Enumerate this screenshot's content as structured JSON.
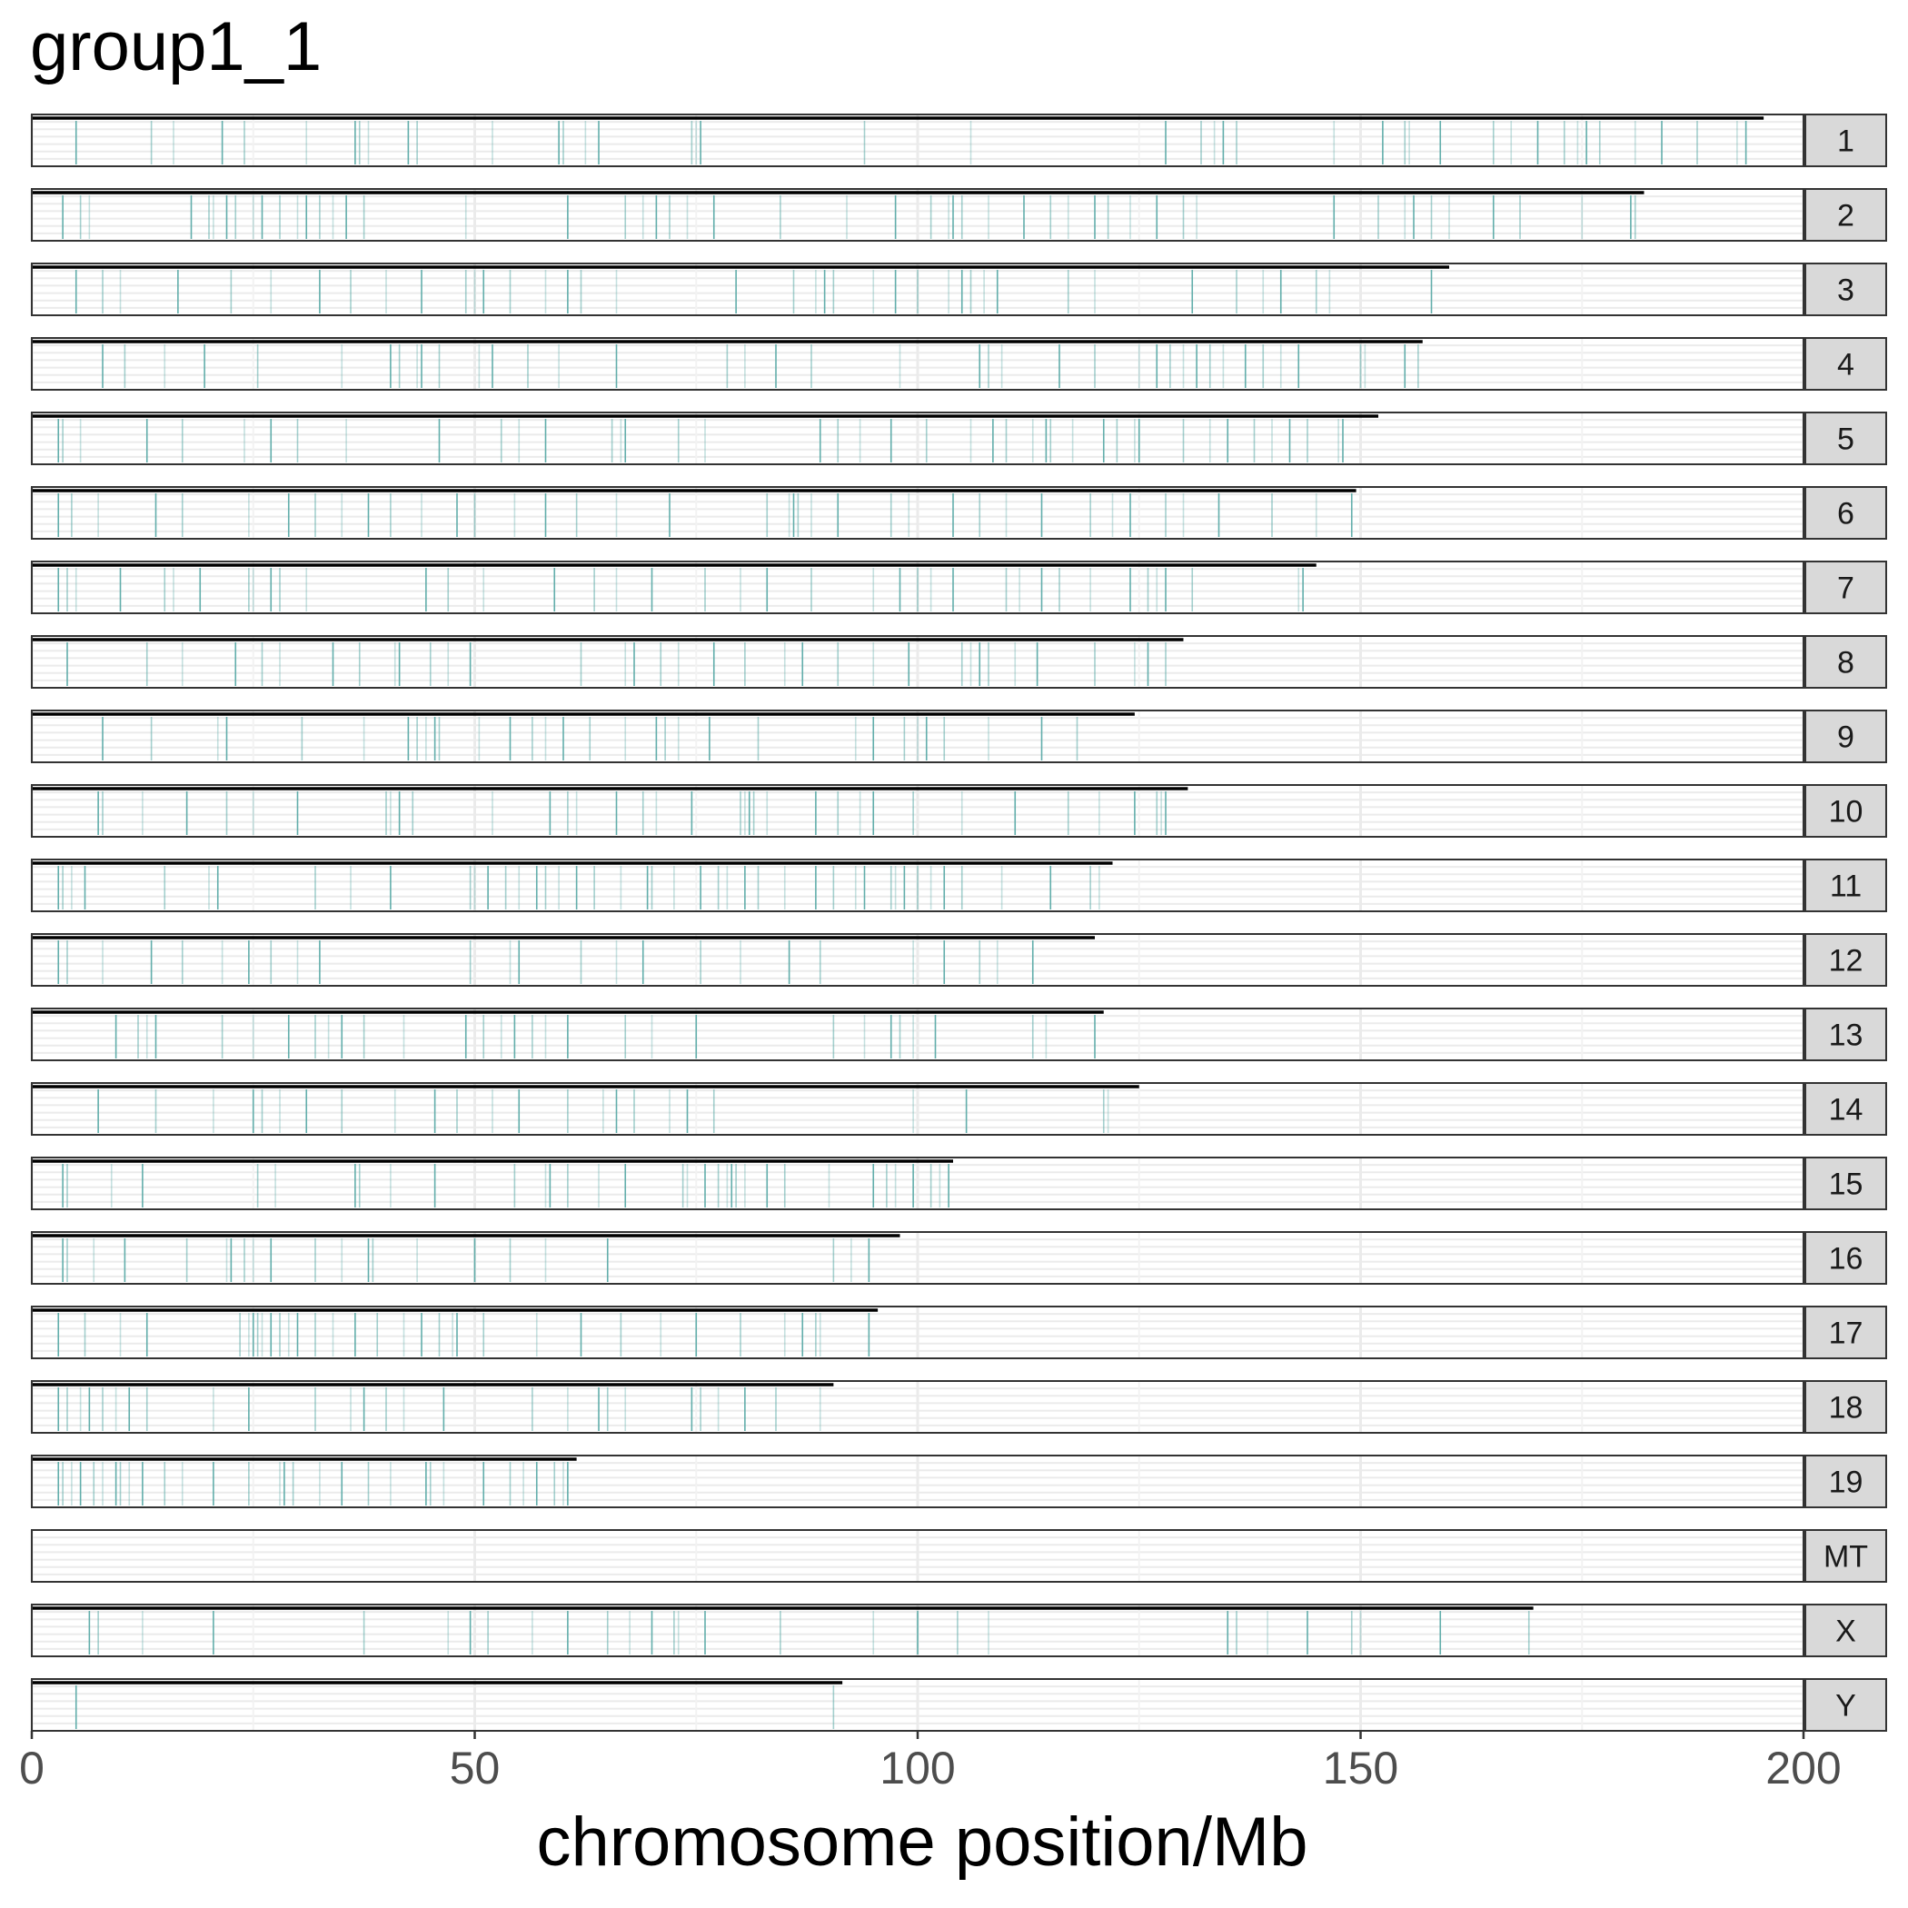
{
  "title": "group1_1",
  "chart_data": {
    "type": "scatter",
    "title": "group1_1",
    "xlabel": "chromosome position/Mb",
    "ylabel": "",
    "xlim": [
      0,
      200
    ],
    "xticks": [
      0,
      50,
      100,
      150,
      200
    ],
    "grid": true,
    "legend": "none",
    "colors": {
      "marker": "#5aaaa6",
      "chromosome_line": "#000000",
      "panel_bg": "#ffffff",
      "strip_bg": "#d9d9d9",
      "gridline": "#ebebeb"
    },
    "panels": [
      {
        "name": "1",
        "length": 195.5,
        "positions": [
          5,
          13.5,
          16,
          21.5,
          24,
          31,
          36.5,
          37,
          38,
          42.5,
          43.5,
          52,
          59.5,
          60,
          62.5,
          64,
          74.5,
          75,
          75.5,
          94,
          106,
          128,
          132,
          133.5,
          134.5,
          136,
          147,
          152.5,
          155,
          155.5,
          159,
          165,
          167,
          170,
          173,
          174.5,
          175.5,
          177,
          181,
          184,
          188,
          192.5,
          193.5
        ]
      },
      {
        "name": "2",
        "length": 182,
        "positions": [
          3.5,
          5.5,
          6.5,
          18,
          20,
          20.5,
          22,
          23,
          25,
          26,
          28,
          30,
          31,
          32.5,
          34,
          35.5,
          37.5,
          49,
          60.5,
          67,
          69,
          70.5,
          72,
          74,
          77,
          84.5,
          92,
          97.5,
          101.5,
          103.5,
          104,
          105,
          108,
          112,
          115,
          117,
          120,
          121.5,
          124,
          127,
          130,
          131.5,
          147,
          152,
          155,
          156,
          158,
          160,
          165,
          168,
          175,
          180.5,
          181
        ]
      },
      {
        "name": "3",
        "length": 160,
        "positions": [
          5,
          8,
          10,
          16.5,
          22.5,
          27,
          32.5,
          36,
          40,
          44,
          49,
          50,
          51,
          54,
          58,
          60.5,
          62,
          66,
          79.5,
          86,
          88.5,
          89.5,
          90.5,
          95,
          97.5,
          100,
          103.5,
          105,
          106,
          107.5,
          109,
          117,
          120,
          131,
          136,
          139,
          141,
          145,
          146.5,
          158
        ]
      },
      {
        "name": "4",
        "length": 157,
        "positions": [
          8,
          10.5,
          15,
          19.5,
          25.5,
          35,
          40.5,
          41.5,
          43.5,
          44,
          46,
          50.5,
          52,
          56,
          59.5,
          66,
          78.5,
          80.5,
          84,
          88,
          98,
          107,
          108,
          109.5,
          116,
          120,
          125,
          127,
          128.5,
          130,
          131.5,
          133,
          134.5,
          137,
          139,
          141,
          143,
          150,
          150.5,
          155,
          156.5
        ]
      },
      {
        "name": "5",
        "length": 152,
        "positions": [
          3,
          3.5,
          5.5,
          13,
          17,
          24,
          27,
          30,
          35.5,
          46,
          53,
          55,
          58,
          65.5,
          66.5,
          67,
          73,
          76,
          89,
          91,
          93.5,
          97,
          101,
          106,
          108.5,
          110,
          113,
          114.5,
          115,
          117.5,
          121,
          122.5,
          124.5,
          125,
          130,
          133,
          135,
          138,
          140,
          142,
          144,
          147.5,
          148
        ]
      },
      {
        "name": "6",
        "length": 149.5,
        "positions": [
          3,
          4.5,
          7.5,
          14,
          17,
          24.5,
          29,
          32,
          35,
          38,
          40.5,
          44,
          48,
          50,
          54.5,
          58,
          61.5,
          66,
          72,
          83,
          85.5,
          86,
          86.5,
          88,
          91,
          97,
          99,
          104,
          107,
          110,
          114,
          119.5,
          122,
          124,
          128,
          130,
          134,
          140,
          145,
          149
        ]
      },
      {
        "name": "7",
        "length": 145,
        "positions": [
          3,
          4,
          5,
          10,
          15,
          16,
          19,
          24.5,
          25,
          27,
          28,
          31,
          44.5,
          47,
          51,
          59,
          63.5,
          66,
          70,
          76,
          80,
          83,
          88,
          95,
          98,
          100,
          101.5,
          104,
          110,
          111.5,
          114,
          116,
          119.5,
          124,
          126,
          127,
          128,
          131,
          143,
          143.5
        ]
      },
      {
        "name": "8",
        "length": 130,
        "positions": [
          4,
          13,
          17,
          23,
          26,
          28,
          34,
          37,
          41,
          41.5,
          45,
          47,
          49.5,
          62,
          67,
          68,
          71,
          73,
          77,
          80.5,
          85,
          87,
          91,
          95,
          99,
          105,
          106,
          107,
          108,
          111,
          113.5,
          120,
          124.5,
          126,
          128
        ]
      },
      {
        "name": "9",
        "length": 124.5,
        "positions": [
          8,
          13.5,
          21,
          22,
          30.5,
          37.5,
          42.5,
          43.5,
          44.5,
          45.5,
          46,
          50.5,
          54,
          56.5,
          58,
          60,
          63,
          67,
          70.5,
          71.5,
          73,
          76.5,
          82,
          93,
          95,
          98.5,
          100,
          101,
          103,
          108,
          114,
          118
        ]
      },
      {
        "name": "10",
        "length": 130.5,
        "positions": [
          7.5,
          8,
          12.5,
          17.5,
          22,
          25,
          30,
          40,
          40.5,
          41.5,
          43,
          52,
          58.5,
          60.5,
          61.5,
          66,
          69,
          70.5,
          74.5,
          80,
          80.5,
          81,
          81.5,
          83,
          88.5,
          91,
          93.5,
          95,
          99.5,
          105,
          111,
          117,
          120.5,
          124.5,
          127,
          127.5,
          128
        ]
      },
      {
        "name": "11",
        "length": 122,
        "positions": [
          3,
          3.5,
          4.5,
          6,
          15,
          20,
          21,
          32,
          36,
          40.5,
          49.5,
          50,
          51.5,
          53.5,
          55,
          57,
          58,
          59.5,
          61.5,
          63.5,
          66.5,
          69.5,
          70,
          72.5,
          75.5,
          77.5,
          78.5,
          80.5,
          82,
          85,
          88.5,
          90.5,
          93,
          94,
          97,
          97.5,
          98.5,
          100,
          101.5,
          103,
          105,
          109.5,
          115,
          119.5,
          120.5
        ]
      },
      {
        "name": "12",
        "length": 120,
        "positions": [
          3,
          4,
          8,
          13.5,
          17,
          21.5,
          24.5,
          27,
          30,
          32.5,
          49.5,
          54,
          55,
          62,
          66,
          69,
          75.5,
          80,
          85.5,
          89,
          99.5,
          103,
          107,
          109,
          113
        ]
      },
      {
        "name": "13",
        "length": 121,
        "positions": [
          9.5,
          12,
          13,
          14,
          21.5,
          25,
          29,
          32,
          33.5,
          35,
          37.5,
          42,
          49,
          51,
          53,
          54.5,
          56.5,
          58,
          60.5,
          67,
          70,
          75,
          90.5,
          94,
          97,
          98,
          99.5,
          102,
          113,
          114.5,
          120
        ]
      },
      {
        "name": "14",
        "length": 125,
        "positions": [
          7.5,
          14,
          20.5,
          25,
          26,
          28,
          31,
          35,
          41,
          45.5,
          48,
          52,
          55,
          60.5,
          64.5,
          66,
          68,
          72,
          74,
          77,
          99.5,
          105.5,
          121,
          121.5
        ]
      },
      {
        "name": "15",
        "length": 104,
        "positions": [
          3.5,
          4,
          9,
          12.5,
          25.5,
          27.5,
          36.5,
          37,
          40.5,
          45.5,
          54.5,
          58,
          58.5,
          60.5,
          64,
          67,
          73.5,
          74,
          76,
          77.5,
          78.5,
          79,
          79.5,
          80.5,
          83,
          85,
          90,
          95,
          96.5,
          97.5,
          99.5,
          101.5,
          102.5,
          103.5
        ]
      },
      {
        "name": "16",
        "length": 98,
        "positions": [
          3.5,
          4,
          7,
          10.5,
          17.5,
          22,
          22.5,
          24,
          25,
          27,
          32,
          35,
          38,
          38.5,
          43.5,
          50,
          54,
          58,
          65,
          90.5,
          92.5,
          94.5
        ]
      },
      {
        "name": "17",
        "length": 95.5,
        "positions": [
          3,
          6,
          10,
          13,
          23.5,
          24.5,
          25,
          25.5,
          26,
          27,
          28,
          29,
          30,
          32,
          34,
          36.5,
          39,
          42,
          44,
          46,
          47.5,
          48,
          51,
          57,
          62,
          66.5,
          71,
          75,
          80,
          85,
          87,
          88.5,
          89,
          94.5
        ]
      },
      {
        "name": "18",
        "length": 90.5,
        "positions": [
          3,
          4,
          5.5,
          6.5,
          8,
          9.5,
          11,
          13,
          20.5,
          24.5,
          32,
          36,
          37.5,
          40,
          42,
          46.5,
          56.5,
          60.5,
          64,
          65,
          67,
          74.5,
          75.5,
          77.5,
          80.5,
          84,
          89
        ]
      },
      {
        "name": "19",
        "length": 61.5,
        "positions": [
          3,
          3.5,
          4.5,
          5.5,
          7,
          8,
          9.5,
          10,
          11,
          12.5,
          15,
          17,
          20.5,
          24.5,
          28,
          28.5,
          29.5,
          32.5,
          35,
          38,
          40.5,
          44.5,
          45,
          46.5,
          51,
          54,
          55.5,
          57,
          59,
          60,
          60.5
        ]
      },
      {
        "name": "MT",
        "length": 0,
        "positions": []
      },
      {
        "name": "X",
        "length": 169.5,
        "positions": [
          6.5,
          7.5,
          12.5,
          20.5,
          37.5,
          47,
          49.5,
          51.5,
          56.5,
          60.5,
          65,
          67.5,
          70,
          72.5,
          73,
          76,
          84.5,
          95,
          100,
          104.5,
          108,
          135,
          136,
          139.5,
          144,
          149,
          150,
          159,
          169
        ]
      },
      {
        "name": "Y",
        "length": 91.5,
        "positions": [
          5,
          90.5
        ]
      }
    ]
  }
}
